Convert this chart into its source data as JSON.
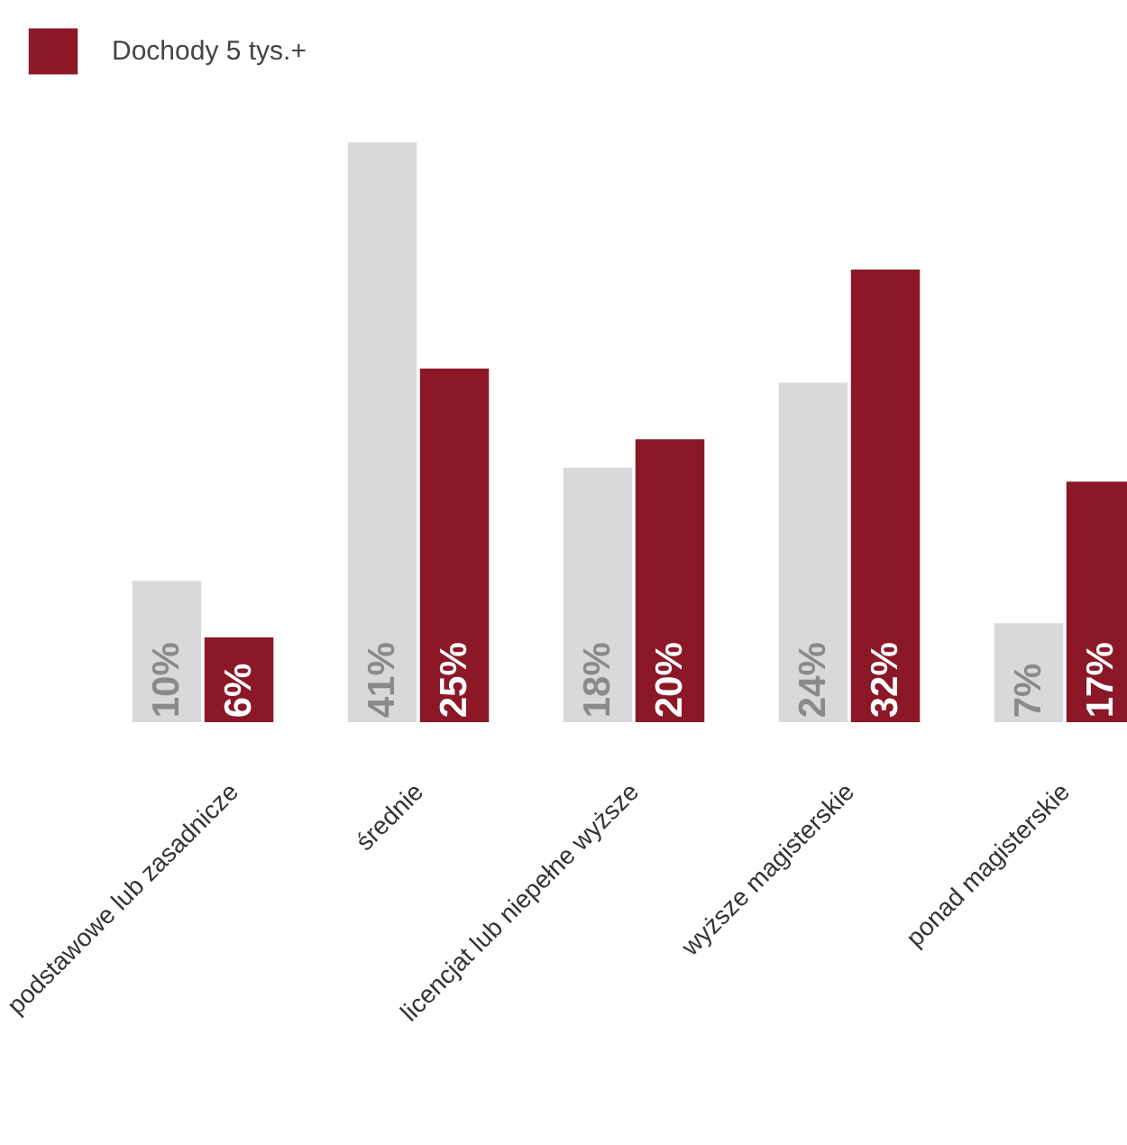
{
  "chart_data": {
    "type": "bar",
    "categories": [
      "podstawowe lub zasadnicze",
      "średnie",
      "licencjat lub niepełne wyższe",
      "wyższe magisterskie",
      "ponad magisterskie"
    ],
    "series": [
      {
        "color": "#d9d9db",
        "values": [
          10,
          41,
          18,
          24,
          7
        ],
        "value_labels": [
          "10%",
          "41%",
          "18%",
          "24%",
          "7%"
        ]
      },
      {
        "name": "Dochody 5 tys.+",
        "color": "#8b1727",
        "values": [
          6,
          25,
          20,
          32,
          17
        ],
        "value_labels": [
          "6%",
          "25%",
          "20%",
          "32%",
          "17%"
        ]
      }
    ],
    "legend": "top left"
  }
}
